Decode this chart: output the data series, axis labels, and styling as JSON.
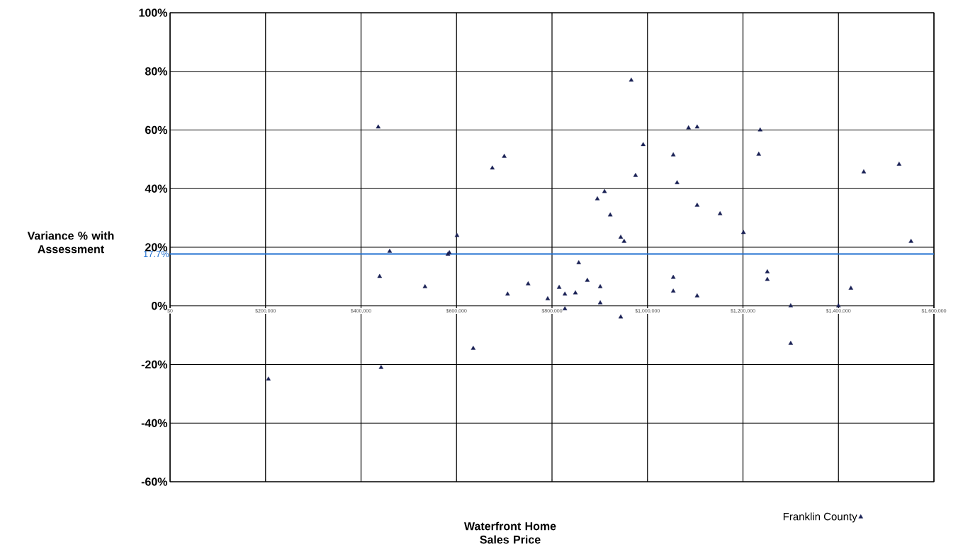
{
  "chart_data": {
    "type": "scatter",
    "xlabel": "Waterfront Home Sales Price",
    "ylabel": "Variance % with Assessment",
    "xlim": [
      0,
      1600000
    ],
    "ylim": [
      -60,
      100
    ],
    "xticks": [
      {
        "value": 0,
        "label": "$0"
      },
      {
        "value": 200000,
        "label": "$200,000"
      },
      {
        "value": 400000,
        "label": "$400,000"
      },
      {
        "value": 600000,
        "label": "$600,000"
      },
      {
        "value": 800000,
        "label": "$800,000"
      },
      {
        "value": 1000000,
        "label": "$1,000,000"
      },
      {
        "value": 1200000,
        "label": "$1,200,000"
      },
      {
        "value": 1400000,
        "label": "$1,400,000"
      },
      {
        "value": 1600000,
        "label": "$1,600,000"
      }
    ],
    "yticks": [
      {
        "value": -60,
        "label": "-60%"
      },
      {
        "value": -40,
        "label": "-40%"
      },
      {
        "value": -20,
        "label": "-20%"
      },
      {
        "value": 0,
        "label": "0%"
      },
      {
        "value": 20,
        "label": "20%"
      },
      {
        "value": 40,
        "label": "40%"
      },
      {
        "value": 60,
        "label": "60%"
      },
      {
        "value": 80,
        "label": "80%"
      },
      {
        "value": 100,
        "label": "100%"
      }
    ],
    "grid": true,
    "legend": "bottom right",
    "marker": "triangle",
    "ref_lines": [
      {
        "axis": "y",
        "value": 17.7,
        "label": "17.7%",
        "color": "#1f6fd0"
      }
    ],
    "series": [
      {
        "name": "Franklin County",
        "color": "#1a2155",
        "x": [
          206000,
          436000,
          439000,
          442000,
          460000,
          534000,
          582000,
          585000,
          601000,
          635000,
          675000,
          700000,
          707000,
          750000,
          791000,
          815000,
          827000,
          827000,
          849000,
          856000,
          874000,
          895000,
          901000,
          901000,
          910000,
          922000,
          944000,
          951000,
          944000,
          966000,
          975000,
          991000,
          1054000,
          1062000,
          1054000,
          1054000,
          1086000,
          1104000,
          1104000,
          1104000,
          1152000,
          1201000,
          1233000,
          1236000,
          1251000,
          1251000,
          1300000,
          1300000,
          1400000,
          1426000,
          1453000,
          1527000,
          1552000
        ],
        "values": [
          -25,
          61,
          10,
          -21,
          18.6,
          6.5,
          17.6,
          18.1,
          24,
          -14.5,
          47,
          51,
          4,
          7.5,
          2.4,
          6.3,
          4,
          -1,
          4.4,
          14.7,
          8.7,
          36.5,
          6.5,
          1,
          39,
          31,
          23.4,
          22,
          -3.8,
          77,
          44.5,
          55,
          51.5,
          42,
          9.7,
          5,
          60.7,
          61,
          34.3,
          3.4,
          31.4,
          25,
          51.7,
          60,
          11.6,
          9,
          0,
          -12.8,
          0,
          6,
          45.7,
          48.3,
          22
        ]
      }
    ]
  }
}
